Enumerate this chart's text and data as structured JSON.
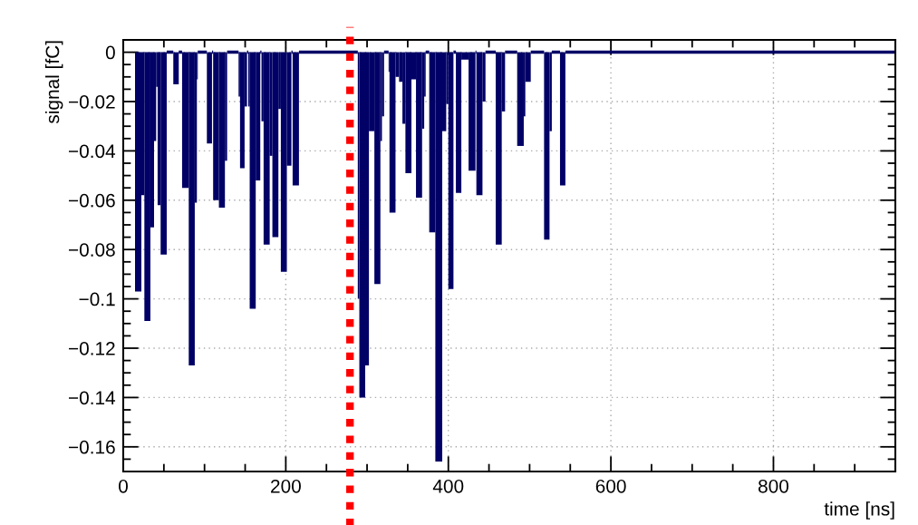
{
  "chart_data": {
    "type": "histogram",
    "xlabel": "time [ns]",
    "ylabel": "signal [fC]",
    "bins": [
      14.5,
      22.3,
      26,
      33.4,
      37.9,
      40.5,
      42.3,
      46,
      53.5,
      61.6,
      68.3,
      72.4,
      80.6,
      88,
      90.6,
      91.7,
      102.9,
      109.2,
      110.6,
      117.7,
      125.1,
      127.8,
      141.9,
      143.7,
      149.3,
      152.3,
      153.8,
      155.6,
      163,
      168.6,
      170.1,
      172.7,
      180.2,
      183.5,
      190.9,
      193.9,
      201.3,
      206.9,
      208.4,
      216.2,
      288.6,
      290.5,
      297.7,
      302.3,
      309,
      316.4,
      318.3,
      320.9,
      326.5,
      327.6,
      335,
      339.4,
      343.5,
      347.2,
      354.6,
      360.2,
      367.7,
      370.3,
      372.1,
      376.5,
      384,
      392.5,
      397.4,
      400,
      406.3,
      409.3,
      416,
      424.9,
      433.4,
      434.5,
      442,
      445.7,
      458.3,
      465.7,
      469.8,
      484.7,
      492.8,
      494.7,
      501.4,
      517.8,
      524.5,
      527.3,
      537.4,
      544,
      950
    ],
    "values": [
      -0.097,
      -0.058,
      -0.109,
      -0.071,
      -0.036,
      -0.014,
      -0.062,
      -0.082,
      0,
      -0.013,
      0,
      -0.055,
      -0.127,
      -0.061,
      -0.011,
      0,
      -0.037,
      0,
      -0.06,
      -0.063,
      -0.044,
      0,
      -0.018,
      -0.047,
      -0.022,
      0,
      -0.022,
      -0.104,
      -0.052,
      0,
      -0.028,
      -0.078,
      -0.042,
      -0.075,
      -0.023,
      -0.089,
      -0.046,
      0,
      -0.054,
      0,
      -0.1,
      -0.14,
      -0.127,
      -0.032,
      -0.094,
      -0.036,
      -0.026,
      0,
      -0.008,
      -0.065,
      -0.01,
      -0.012,
      -0.029,
      -0.049,
      -0.011,
      -0.059,
      -0.031,
      -0.018,
      0,
      -0.073,
      -0.166,
      -0.032,
      -0.021,
      -0.096,
      0,
      -0.057,
      -0.003,
      -0.048,
      0,
      -0.058,
      -0.02,
      0,
      -0.078,
      -0.024,
      0,
      -0.038,
      -0.026,
      -0.012,
      0,
      -0.076,
      -0.032,
      0,
      -0.054,
      0
    ],
    "color": "#000066",
    "xlim": [
      0,
      950
    ],
    "xticks": [
      0,
      200,
      400,
      600,
      800
    ],
    "ylim": [
      -0.17,
      0.005
    ],
    "yticks": [
      0,
      {
        "value": -0.02,
        "label": "−0.02"
      },
      {
        "value": -0.04,
        "label": "−0.04"
      },
      {
        "value": -0.06,
        "label": "−0.06"
      },
      {
        "value": -0.08,
        "label": "−0.08"
      },
      {
        "value": -0.1,
        "label": "−0.1"
      },
      {
        "value": -0.12,
        "label": "−0.12"
      },
      {
        "value": -0.14,
        "label": "−0.14"
      },
      {
        "value": -0.16,
        "label": "−0.16"
      }
    ],
    "grid": true,
    "ref_lines": [
      {
        "axis": "x",
        "value": 279,
        "color": "#ff0000",
        "line_style": "dotted"
      }
    ]
  }
}
